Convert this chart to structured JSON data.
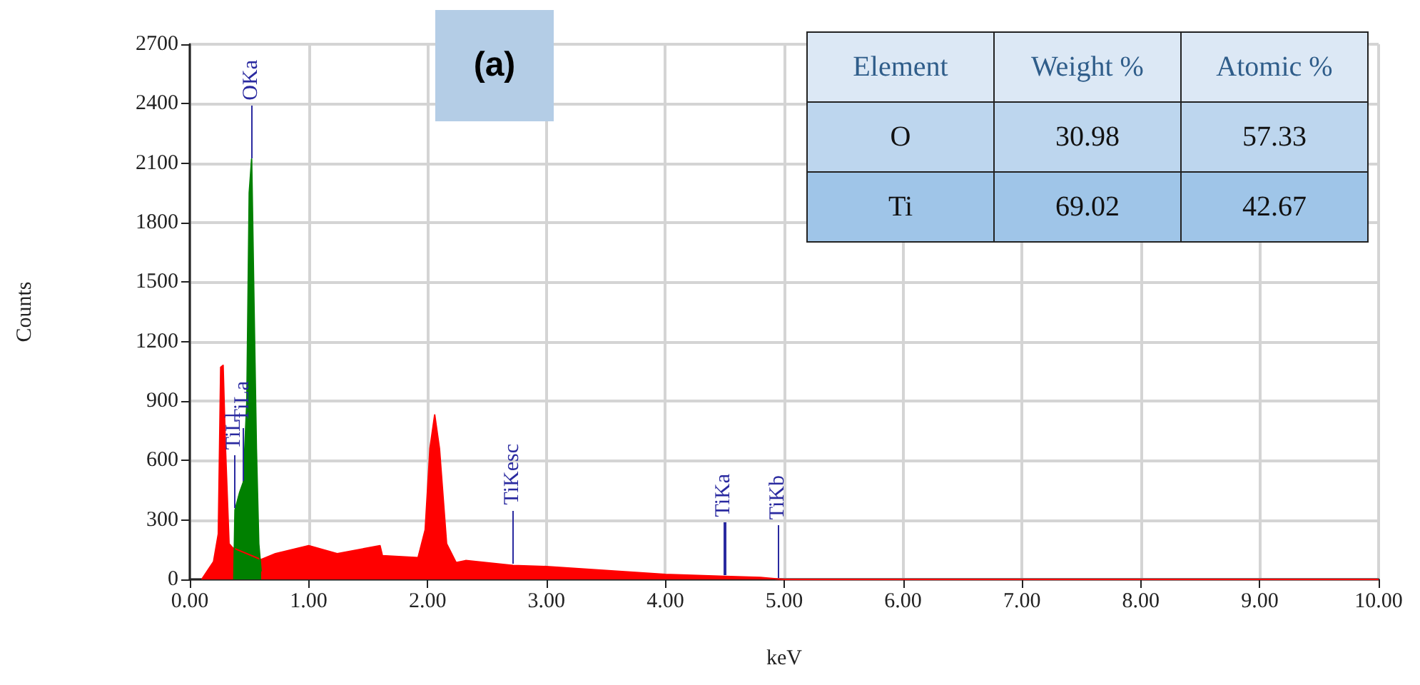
{
  "chart_data": {
    "type": "area",
    "xlabel": "keV",
    "ylabel": "Counts",
    "xlim": [
      0,
      10
    ],
    "xticks": [
      {
        "value": 0,
        "label": "0.00"
      },
      {
        "value": 1,
        "label": "1.00"
      },
      {
        "value": 2,
        "label": "2.00"
      },
      {
        "value": 3,
        "label": "3.00"
      },
      {
        "value": 4,
        "label": "4.00"
      },
      {
        "value": 5,
        "label": "5.00"
      },
      {
        "value": 6,
        "label": "6.00"
      },
      {
        "value": 7,
        "label": "7.00"
      },
      {
        "value": 8,
        "label": "8.00"
      },
      {
        "value": 9,
        "label": "9.00"
      },
      {
        "value": 10,
        "label": "10.00"
      }
    ],
    "ylim": [
      0,
      2700
    ],
    "yticks": [
      0,
      300,
      600,
      900,
      1200,
      1500,
      1800,
      2100,
      2400,
      2700
    ],
    "grid": true,
    "series": [
      {
        "color": "#ff0000",
        "x": [
          0.1,
          0.2,
          0.24,
          0.26,
          0.28,
          0.3,
          0.33,
          0.36,
          0.6,
          0.72,
          1.0,
          1.24,
          1.6,
          1.62,
          1.92,
          1.98,
          2.02,
          2.06,
          2.1,
          2.16,
          2.24,
          2.32,
          2.72,
          3.0,
          3.5,
          4.0,
          4.5,
          4.8,
          4.95,
          5.0,
          10.0
        ],
        "values": [
          0,
          90,
          230,
          1070,
          1080,
          660,
          180,
          160,
          100,
          130,
          170,
          130,
          170,
          120,
          110,
          250,
          660,
          830,
          660,
          180,
          85,
          95,
          70,
          65,
          45,
          25,
          15,
          10,
          2,
          0,
          0
        ]
      },
      {
        "color": "#008000",
        "x": [
          0.37,
          0.38,
          0.42,
          0.45,
          0.48,
          0.5,
          0.52,
          0.54,
          0.56,
          0.58,
          0.6
        ],
        "values": [
          0,
          350,
          440,
          490,
          900,
          1950,
          2120,
          1380,
          660,
          180,
          40
        ]
      }
    ],
    "annotations": [
      "(a)",
      "Element",
      "Weight %",
      "Atomic %",
      "O",
      "30.98",
      "57.33",
      "Ti",
      "69.02",
      "42.67",
      {
        "text": "OKa",
        "x": 0.52,
        "y": 2120
      },
      {
        "text": "TiLl",
        "x": 0.38,
        "y": 350
      },
      {
        "text": "TiLa",
        "x": 0.45,
        "y": 490
      },
      {
        "text": "TiKesc",
        "x": 2.72,
        "y": 70
      },
      {
        "text": "TiKa",
        "x": 4.5,
        "y": 15
      },
      {
        "text": "TiKb",
        "x": 4.95,
        "y": 2
      }
    ]
  }
}
